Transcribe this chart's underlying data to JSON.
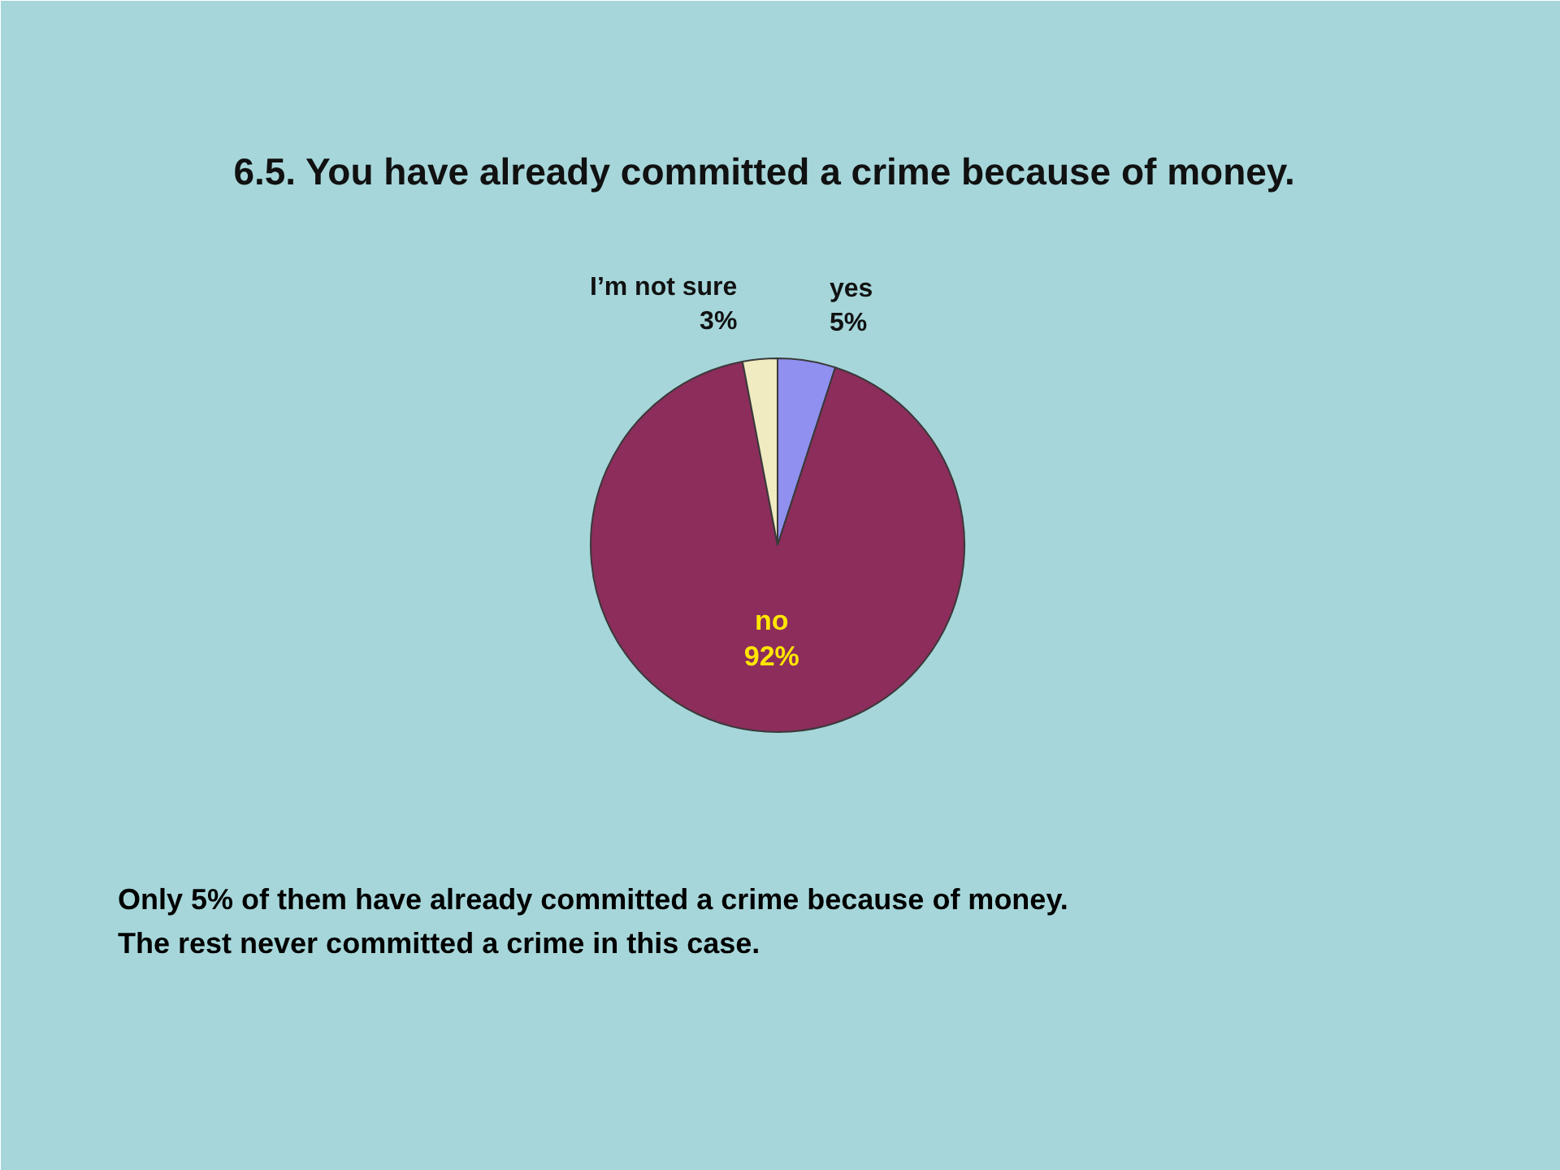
{
  "chart_data": {
    "type": "pie",
    "title": "6.5. You have already committed a crime because of money.",
    "categories": [
      "yes",
      "no",
      "I’m not sure"
    ],
    "values": [
      5,
      92,
      3
    ],
    "colors": [
      "#9090f0",
      "#8c2d5c",
      "#f0ebc0"
    ],
    "value_labels": [
      "5%",
      "92%",
      "3%"
    ],
    "annotations": [
      "Only 5% of them have already committed a crime because of money.",
      "The rest never committed a crime in this case."
    ]
  }
}
